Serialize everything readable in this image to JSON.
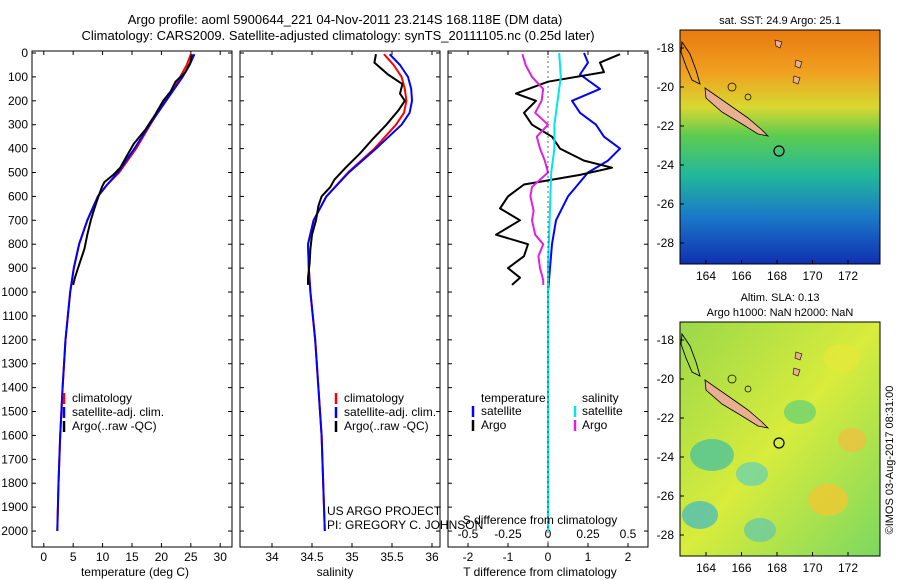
{
  "header": {
    "line1": "Argo profile: aoml 5900644_221 04-Nov-2011 23.214S 168.118E (DM data)",
    "line2": "Climatology: CARS2009. Satellite-adjusted climatology: synTS_20111105.nc (0.25d later)"
  },
  "colors": {
    "climatology": "#ff0000",
    "satellite": "#0000ff",
    "argo": "#000000",
    "sal_satellite": "#00e5ee",
    "sal_argo": "#e020e0"
  },
  "depth_axis": {
    "min": 0,
    "max": 2050,
    "ticks": [
      "0",
      "100",
      "200",
      "300",
      "400",
      "500",
      "600",
      "700",
      "800",
      "900",
      "1000",
      "1100",
      "1200",
      "1300",
      "1400",
      "1500",
      "1600",
      "1700",
      "1800",
      "1900",
      "2000"
    ]
  },
  "panels": {
    "temperature": {
      "xlabel": "temperature (deg C)",
      "xlim": [
        -2,
        32
      ],
      "ticks": [
        "0",
        "5",
        "10",
        "15",
        "20",
        "25",
        "30"
      ],
      "legend": [
        "climatology",
        "satellite-adj. clim.",
        "Argo(..raw -QC)"
      ]
    },
    "salinity": {
      "xlabel": "salinity",
      "xlim": [
        33.6,
        36.1
      ],
      "ticks": [
        "34",
        "34.5",
        "35",
        "35.5",
        "36"
      ],
      "legend": [
        "climatology",
        "satellite-adj. clim.",
        "Argo(..raw -QC)"
      ],
      "credit1": "US ARGO PROJECT",
      "credit2": "PI: GREGORY C. JOHNSON"
    },
    "difference": {
      "xlabel_top": "S difference from climatology",
      "xlabel_bottom": "T difference from climatology",
      "xlim": [
        -2.5,
        2.5
      ],
      "ticks_T": [
        "-2",
        "-1",
        "0",
        "1",
        "2"
      ],
      "ticks_S": [
        "-0.5",
        "-0.25",
        "0",
        "0.25",
        "0.5"
      ],
      "legend_temp_title": "temperature",
      "legend_sal_title": "salinity",
      "legend_temp": [
        "satellite",
        "Argo"
      ],
      "legend_sal": [
        "satellite",
        "Argo"
      ]
    }
  },
  "chart_data": [
    {
      "type": "line",
      "title": "temperature",
      "xlabel": "temperature (deg C)",
      "ylabel": "depth",
      "series": [
        {
          "name": "climatology",
          "depth": [
            5,
            50,
            100,
            200,
            300,
            400,
            500,
            550,
            600,
            700,
            800,
            900,
            1000,
            1200,
            1400,
            1600,
            1800,
            2000
          ],
          "values": [
            25.0,
            24.3,
            23.2,
            20.6,
            18.1,
            15.7,
            12.8,
            10.8,
            9.2,
            7.4,
            6.0,
            5.1,
            4.5,
            3.7,
            3.2,
            2.8,
            2.5,
            2.3
          ]
        },
        {
          "name": "satellite-adj. clim.",
          "depth": [
            5,
            50,
            100,
            200,
            300,
            400,
            500,
            550,
            600,
            700,
            800,
            900,
            1000,
            1200,
            1400,
            1600,
            1800,
            2000
          ],
          "values": [
            25.6,
            24.8,
            23.6,
            20.8,
            18.0,
            15.4,
            12.6,
            10.8,
            9.2,
            7.4,
            6.0,
            5.1,
            4.5,
            3.7,
            3.2,
            2.8,
            2.5,
            2.3
          ]
        },
        {
          "name": "Argo(..raw -QC)",
          "depth": [
            5,
            40,
            80,
            120,
            160,
            200,
            260,
            320,
            380,
            440,
            480,
            510,
            540,
            560,
            600,
            650,
            700,
            760,
            820,
            880,
            940,
            970
          ],
          "values": [
            25.2,
            24.9,
            24.1,
            22.4,
            21.6,
            20.3,
            18.9,
            17.3,
            15.3,
            13.9,
            13.0,
            11.8,
            10.3,
            9.9,
            9.3,
            8.6,
            8.0,
            7.4,
            6.9,
            6.1,
            5.3,
            5.0
          ]
        }
      ]
    },
    {
      "type": "line",
      "title": "salinity",
      "xlabel": "salinity",
      "ylabel": "depth",
      "series": [
        {
          "name": "climatology",
          "depth": [
            5,
            50,
            100,
            150,
            200,
            250,
            300,
            400,
            500,
            600,
            700,
            800,
            900,
            1000,
            1200,
            1400,
            1600,
            1800,
            2000
          ],
          "values": [
            35.4,
            35.52,
            35.62,
            35.66,
            35.68,
            35.65,
            35.55,
            35.28,
            34.95,
            34.68,
            34.52,
            34.45,
            34.46,
            34.48,
            34.54,
            34.58,
            34.62,
            34.64,
            34.66
          ]
        },
        {
          "name": "satellite-adj. clim.",
          "depth": [
            5,
            50,
            100,
            150,
            200,
            250,
            300,
            400,
            500,
            600,
            700,
            800,
            900,
            1000,
            1200,
            1400,
            1600,
            1800,
            2000
          ],
          "values": [
            35.47,
            35.6,
            35.7,
            35.74,
            35.75,
            35.72,
            35.62,
            35.3,
            34.96,
            34.68,
            34.52,
            34.45,
            34.46,
            34.48,
            34.54,
            34.58,
            34.62,
            34.64,
            34.66
          ]
        },
        {
          "name": "Argo(..raw -QC)",
          "depth": [
            5,
            40,
            90,
            130,
            170,
            200,
            240,
            300,
            360,
            420,
            480,
            530,
            560,
            600,
            640,
            700,
            760,
            820,
            880,
            940,
            970
          ],
          "values": [
            35.3,
            35.28,
            35.45,
            35.63,
            35.6,
            35.66,
            35.58,
            35.43,
            35.26,
            35.1,
            34.92,
            34.78,
            34.73,
            34.62,
            34.58,
            34.55,
            34.5,
            34.48,
            34.47,
            34.45,
            34.45
          ]
        }
      ]
    },
    {
      "type": "line",
      "title": "difference from climatology",
      "xlabel": "T difference from climatology",
      "ylabel": "depth",
      "series": [
        {
          "name": "temperature satellite",
          "unit": "T",
          "depth": [
            0,
            40,
            90,
            150,
            200,
            250,
            300,
            350,
            400,
            450,
            500,
            600,
            700,
            800,
            900,
            1000,
            1500,
            2000
          ],
          "values": [
            0.9,
            1.0,
            0.8,
            1.3,
            0.6,
            0.8,
            1.2,
            1.4,
            1.8,
            1.5,
            1.0,
            0.5,
            0.2,
            0.1,
            0.05,
            0.0,
            0.0,
            0.0
          ]
        },
        {
          "name": "temperature Argo",
          "unit": "T",
          "depth": [
            5,
            40,
            80,
            120,
            170,
            200,
            250,
            300,
            350,
            400,
            450,
            480,
            510,
            550,
            600,
            650,
            700,
            760,
            800,
            850,
            900,
            940,
            970
          ],
          "values": [
            1.8,
            1.3,
            1.4,
            0.0,
            -0.8,
            -0.3,
            -0.6,
            -0.4,
            0.1,
            0.3,
            0.9,
            1.6,
            0.8,
            -0.6,
            -1.0,
            -1.2,
            -0.7,
            -1.3,
            -0.5,
            -0.6,
            -1.0,
            -0.7,
            -0.9
          ]
        },
        {
          "name": "salinity satellite",
          "unit": "S",
          "depth": [
            0,
            100,
            200,
            300,
            400,
            500,
            700,
            900,
            1200,
            1600,
            2000
          ],
          "values": [
            0.07,
            0.08,
            0.06,
            0.04,
            0.04,
            0.02,
            0.01,
            0.0,
            0.0,
            0.0,
            0.0
          ]
        },
        {
          "name": "salinity Argo",
          "unit": "S",
          "depth": [
            5,
            50,
            100,
            150,
            200,
            250,
            300,
            350,
            400,
            450,
            500,
            560,
            600,
            660,
            700,
            760,
            800,
            850,
            900,
            950,
            970
          ],
          "values": [
            -0.16,
            -0.14,
            -0.1,
            -0.03,
            -0.04,
            -0.08,
            0.0,
            -0.07,
            -0.05,
            -0.02,
            0.0,
            -0.1,
            -0.11,
            -0.09,
            -0.1,
            -0.08,
            -0.03,
            -0.06,
            -0.05,
            -0.03,
            -0.03
          ]
        }
      ],
      "xlim_T": [
        -2.5,
        2.5
      ],
      "xlim_S": [
        -0.625,
        0.625
      ]
    }
  ],
  "maps": {
    "sst": {
      "title": "sat. SST: 24.9 Argo: 25.1",
      "yticks": [
        "-18",
        "-20",
        "-22",
        "-24",
        "-26",
        "-28"
      ],
      "xticks": [
        "164",
        "166",
        "168",
        "170",
        "172"
      ]
    },
    "sla": {
      "title1": "Altim. SLA: 0.13",
      "title2": "Argo h1000: NaN h2000: NaN",
      "yticks": [
        "-18",
        "-20",
        "-22",
        "-24",
        "-26",
        "-28"
      ],
      "xticks": [
        "164",
        "166",
        "168",
        "170",
        "172"
      ]
    }
  },
  "footer": {
    "watermark": "©IMOS 03-Aug-2017 08:31:00"
  }
}
